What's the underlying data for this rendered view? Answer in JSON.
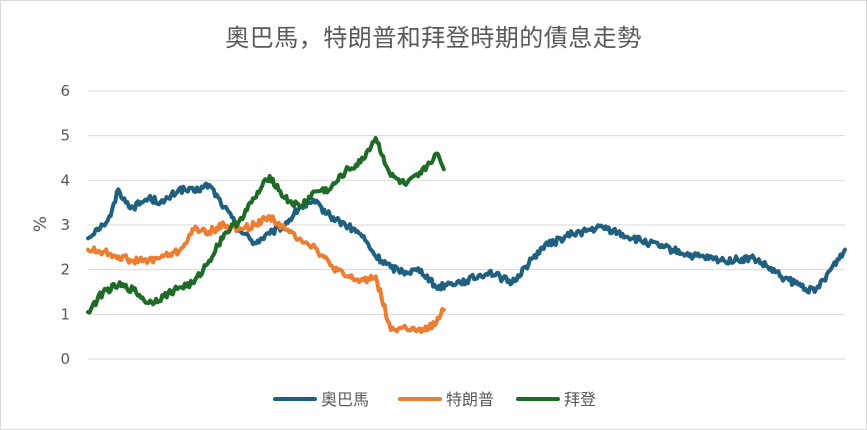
{
  "chart_data": {
    "type": "line",
    "title": "奧巴馬，特朗普和拜登時期的債息走勢",
    "xlabel": "",
    "ylabel": "%",
    "ylim": [
      0,
      6
    ],
    "yticks": [
      "0",
      "1",
      "2",
      "3",
      "4",
      "5",
      "6"
    ],
    "grid": true,
    "legend_position": "bottom",
    "series": [
      {
        "name": "奧巴馬",
        "color": "#1f5f7f",
        "x": [
          0,
          1,
          2,
          3,
          4,
          5,
          6,
          8,
          10,
          12,
          14,
          16,
          18,
          20,
          22,
          24,
          26,
          28,
          30,
          32,
          34,
          36,
          38,
          40,
          42,
          44,
          46,
          48,
          50,
          53,
          56,
          60,
          64,
          68,
          72,
          76,
          80,
          84,
          88,
          92,
          96,
          100
        ],
        "values": [
          2.7,
          2.9,
          3.0,
          3.2,
          3.8,
          3.5,
          3.4,
          3.6,
          3.5,
          3.8,
          3.75,
          3.9,
          3.4,
          2.9,
          2.6,
          2.8,
          3.0,
          3.4,
          3.5,
          3.2,
          3.0,
          2.8,
          2.3,
          2.05,
          1.95,
          2.0,
          1.6,
          1.7,
          1.75,
          1.95,
          1.7,
          2.5,
          2.8,
          2.95,
          2.7,
          2.5,
          2.3,
          2.2,
          2.25,
          1.8,
          1.5,
          2.45
        ]
      },
      {
        "name": "特朗普",
        "color": "#ed7d31",
        "x": [
          0,
          2,
          4,
          6,
          8,
          10,
          12,
          14,
          16,
          18,
          20,
          22,
          24,
          26,
          28,
          30,
          32,
          34,
          36,
          38,
          40,
          42,
          44,
          46,
          47
        ],
        "values": [
          2.45,
          2.4,
          2.3,
          2.2,
          2.2,
          2.3,
          2.4,
          2.9,
          2.85,
          3.0,
          2.9,
          3.0,
          3.2,
          2.9,
          2.7,
          2.5,
          2.1,
          1.85,
          1.75,
          1.85,
          0.65,
          0.7,
          0.6,
          0.8,
          1.1
        ]
      },
      {
        "name": "拜登",
        "color": "#1e6b28",
        "x": [
          0,
          2,
          4,
          6,
          8,
          10,
          12,
          14,
          16,
          18,
          20,
          22,
          24,
          26,
          28,
          30,
          32,
          34,
          36,
          38,
          40,
          42,
          44,
          46,
          47
        ],
        "values": [
          1.05,
          1.5,
          1.65,
          1.55,
          1.25,
          1.4,
          1.6,
          1.7,
          2.2,
          2.8,
          3.1,
          3.6,
          4.1,
          3.6,
          3.4,
          3.75,
          3.8,
          4.2,
          4.4,
          4.95,
          4.1,
          3.9,
          4.15,
          4.6,
          4.25
        ]
      }
    ],
    "xmax": 100
  }
}
